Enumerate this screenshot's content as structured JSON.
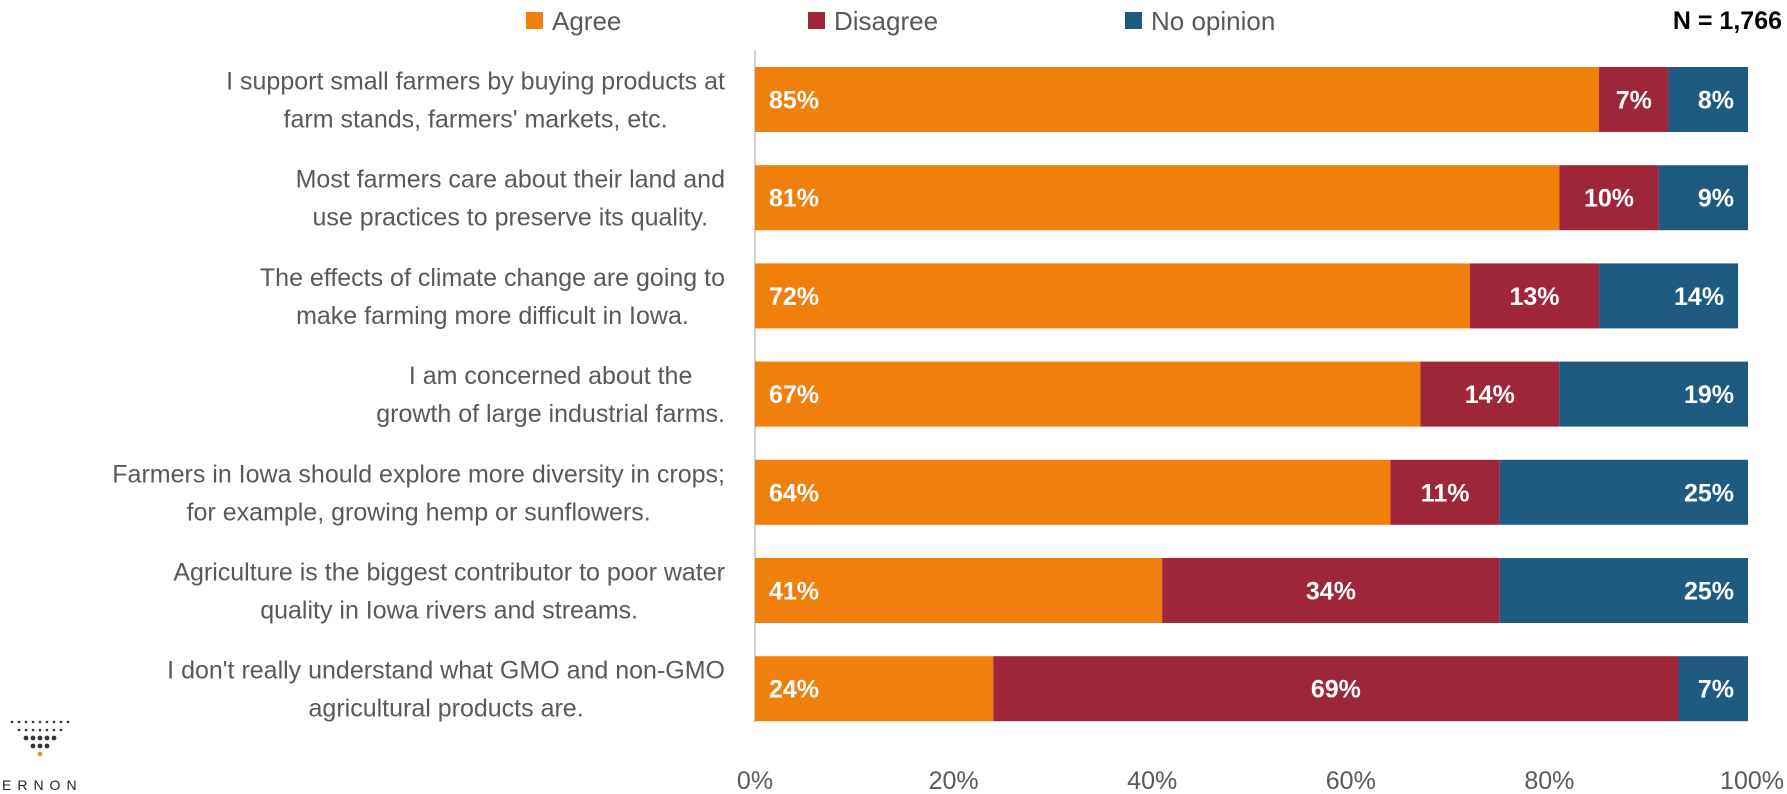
{
  "chart_data": {
    "type": "bar",
    "orientation": "horizontal",
    "stacked": true,
    "title": "",
    "sample_size": "N = 1,766",
    "categories": [
      [
        "I support small farmers by buying products at",
        "farm stands, farmers' markets, etc."
      ],
      [
        "Most farmers care about their land and",
        "use practices to preserve its quality."
      ],
      [
        "The effects of climate change are going to",
        "make farming more difficult in Iowa."
      ],
      [
        "I am concerned about the",
        "growth of large industrial farms."
      ],
      [
        "Farmers in Iowa should explore more diversity in crops;",
        "for example, growing hemp or sunflowers."
      ],
      [
        "Agriculture is the biggest contributor to poor water",
        "quality in Iowa rivers and streams."
      ],
      [
        "I don't really understand what GMO and non-GMO",
        "agricultural products are."
      ]
    ],
    "series": [
      {
        "name": "Agree",
        "color": "#F07F0B",
        "values": [
          85,
          81,
          72,
          67,
          64,
          41,
          24
        ]
      },
      {
        "name": "Disagree",
        "color": "#9E2638",
        "values": [
          7,
          10,
          13,
          14,
          11,
          34,
          69
        ]
      },
      {
        "name": "No opinion",
        "color": "#1F5B80",
        "values": [
          8,
          9,
          14,
          19,
          25,
          25,
          7
        ]
      }
    ],
    "value_suffix": "%",
    "xlim": [
      0,
      100
    ],
    "x_ticks": [
      "0%",
      "20%",
      "40%",
      "60%",
      "80%",
      "100%"
    ],
    "legend_position": "top",
    "grid": false
  },
  "logo": {
    "text": "ERNON"
  }
}
